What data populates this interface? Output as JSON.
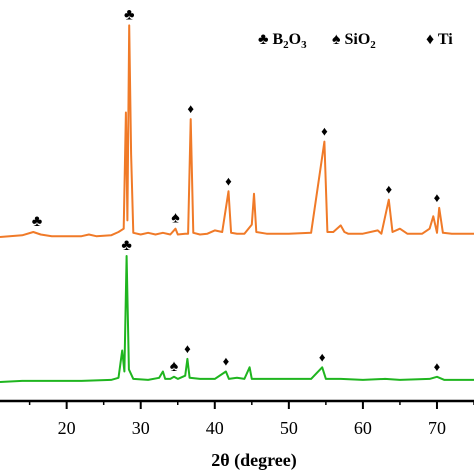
{
  "chart_data": {
    "type": "line",
    "xlabel": "2θ (degree)",
    "xlim": [
      11,
      75
    ],
    "ticks": [
      20,
      30,
      40,
      50,
      60,
      70
    ],
    "grid": false,
    "legend_position": "top-right",
    "legend": [
      {
        "symbol": "♣",
        "label_base": "B",
        "sub1": "2",
        "mid": "O",
        "sub2": "3"
      },
      {
        "symbol": "♠",
        "label_base": "SiO",
        "sub1": "2",
        "mid": "",
        "sub2": ""
      },
      {
        "symbol": "♦",
        "label_base": "Ti",
        "sub1": "",
        "mid": "",
        "sub2": ""
      }
    ],
    "series": [
      {
        "color": "#f07a28",
        "baseline": 0,
        "points": [
          [
            11,
            0
          ],
          [
            14,
            2
          ],
          [
            15.5,
            6
          ],
          [
            16.5,
            3
          ],
          [
            18,
            1
          ],
          [
            20,
            1
          ],
          [
            22,
            1
          ],
          [
            23,
            3
          ],
          [
            24,
            1
          ],
          [
            26,
            2
          ],
          [
            27,
            6
          ],
          [
            27.7,
            10
          ],
          [
            28.0,
            150
          ],
          [
            28.2,
            20
          ],
          [
            28.45,
            255
          ],
          [
            28.7,
            100
          ],
          [
            29.0,
            5
          ],
          [
            30,
            3
          ],
          [
            31,
            5
          ],
          [
            32,
            3
          ],
          [
            33,
            5
          ],
          [
            34,
            3
          ],
          [
            34.7,
            10
          ],
          [
            35,
            3
          ],
          [
            36,
            4
          ],
          [
            36.4,
            4
          ],
          [
            36.75,
            142
          ],
          [
            37.1,
            5
          ],
          [
            38,
            3
          ],
          [
            39,
            4
          ],
          [
            40,
            8
          ],
          [
            41,
            6
          ],
          [
            41.85,
            55
          ],
          [
            42.2,
            5
          ],
          [
            43,
            4
          ],
          [
            44,
            4
          ],
          [
            45,
            15
          ],
          [
            45.3,
            52
          ],
          [
            45.6,
            6
          ],
          [
            47,
            4
          ],
          [
            50,
            4
          ],
          [
            53,
            5
          ],
          [
            54.8,
            115
          ],
          [
            55.2,
            6
          ],
          [
            56,
            6
          ],
          [
            57,
            14
          ],
          [
            57.5,
            6
          ],
          [
            58,
            4
          ],
          [
            60,
            4
          ],
          [
            62,
            8
          ],
          [
            62.5,
            4
          ],
          [
            63.5,
            45
          ],
          [
            64,
            6
          ],
          [
            65,
            10
          ],
          [
            66,
            4
          ],
          [
            68,
            4
          ],
          [
            69,
            10
          ],
          [
            69.5,
            25
          ],
          [
            70,
            5
          ],
          [
            70.3,
            35
          ],
          [
            70.8,
            5
          ],
          [
            72,
            4
          ],
          [
            75,
            4
          ]
        ],
        "markers": [
          {
            "x": 16.0,
            "symbol": "♣"
          },
          {
            "x": 28.45,
            "symbol": "♣"
          },
          {
            "x": 34.7,
            "symbol": "♠"
          },
          {
            "x": 36.75,
            "symbol": "♦"
          },
          {
            "x": 41.85,
            "symbol": "♦"
          },
          {
            "x": 54.8,
            "symbol": "♦"
          },
          {
            "x": 63.5,
            "symbol": "♦"
          },
          {
            "x": 70.0,
            "symbol": "♦"
          }
        ]
      },
      {
        "color": "#1fb51f",
        "baseline": 0,
        "points": [
          [
            11,
            0
          ],
          [
            14,
            1
          ],
          [
            18,
            1
          ],
          [
            22,
            1
          ],
          [
            26,
            2
          ],
          [
            27,
            4
          ],
          [
            27.5,
            30
          ],
          [
            27.8,
            10
          ],
          [
            28.1,
            120
          ],
          [
            28.4,
            12
          ],
          [
            29,
            3
          ],
          [
            31,
            2
          ],
          [
            32.5,
            4
          ],
          [
            33,
            10
          ],
          [
            33.3,
            3
          ],
          [
            34,
            3
          ],
          [
            34.5,
            5
          ],
          [
            35,
            3
          ],
          [
            36,
            6
          ],
          [
            36.3,
            22
          ],
          [
            36.6,
            4
          ],
          [
            38,
            3
          ],
          [
            40,
            3
          ],
          [
            41.5,
            10
          ],
          [
            41.9,
            3
          ],
          [
            43,
            4
          ],
          [
            44,
            3
          ],
          [
            44.7,
            14
          ],
          [
            45,
            3
          ],
          [
            47,
            3
          ],
          [
            50,
            3
          ],
          [
            53,
            3
          ],
          [
            54.5,
            14
          ],
          [
            55,
            3
          ],
          [
            57,
            3
          ],
          [
            60,
            2
          ],
          [
            63,
            3
          ],
          [
            65,
            2
          ],
          [
            69,
            3
          ],
          [
            70,
            5
          ],
          [
            71,
            2
          ],
          [
            75,
            2
          ]
        ],
        "markers": [
          {
            "x": 28.1,
            "symbol": "♣"
          },
          {
            "x": 34.5,
            "symbol": "♠"
          },
          {
            "x": 36.3,
            "symbol": "♦"
          },
          {
            "x": 41.5,
            "symbol": "♦"
          },
          {
            "x": 54.5,
            "symbol": "♦"
          },
          {
            "x": 70.0,
            "symbol": "♦"
          }
        ]
      }
    ]
  }
}
